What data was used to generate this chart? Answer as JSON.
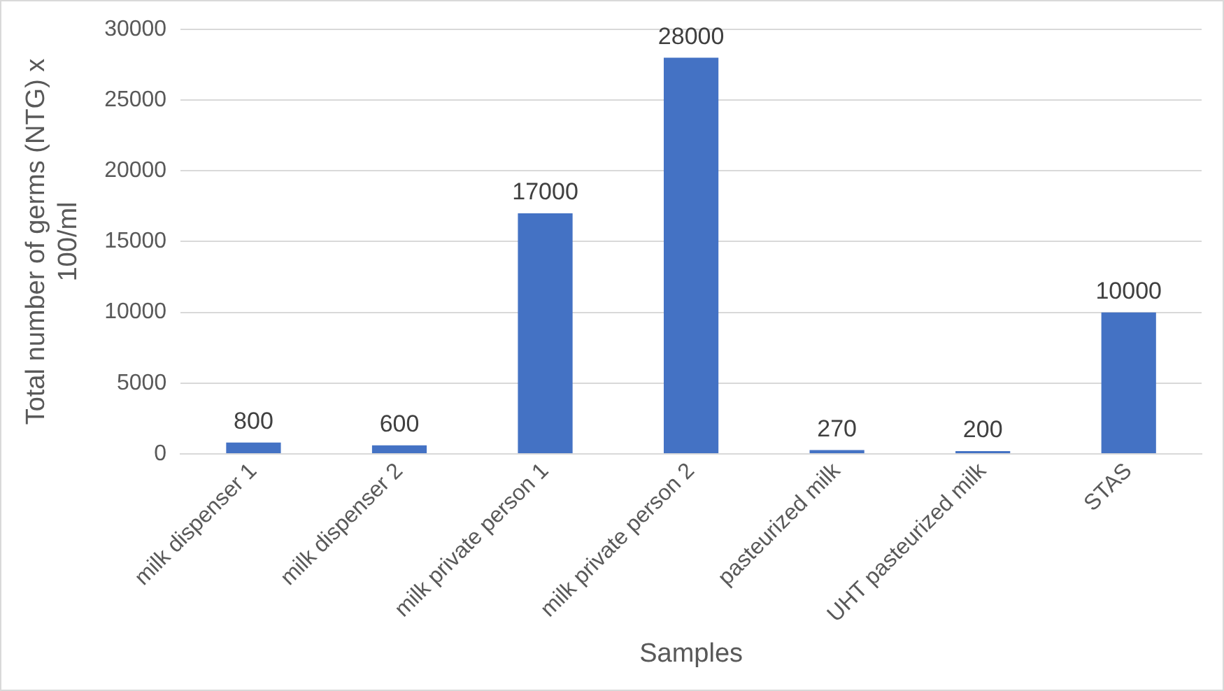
{
  "chart_data": {
    "type": "bar",
    "xlabel": "Samples",
    "ylabel": "Total number of germs (NTG) x 100/ml",
    "categories": [
      "milk dispenser 1",
      "milk dispenser 2",
      "milk private person 1",
      "milk private person 2",
      "pasteurized milk",
      "UHT pasteurized milk",
      "STAS"
    ],
    "values": [
      800,
      600,
      17000,
      28000,
      270,
      200,
      10000
    ],
    "color": "#4472c4",
    "ylim": [
      0,
      30000
    ],
    "yticks": [
      0,
      5000,
      10000,
      15000,
      20000,
      25000,
      30000
    ],
    "grid": "y",
    "data_labels": true,
    "legend": false
  }
}
